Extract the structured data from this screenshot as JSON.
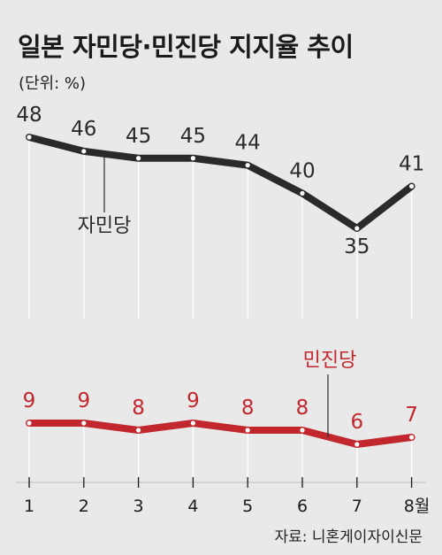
{
  "header": {
    "title": "일본 자민당·민진당 지지율 추이",
    "unit": "(단위: %)"
  },
  "footer": {
    "source": "자료: 니혼게이자이신문"
  },
  "colors": {
    "background": "#e9e9e9",
    "ldp": "#2a2a2a",
    "dp": "#c1272d"
  },
  "chart_data": {
    "type": "line",
    "categories": [
      "1",
      "2",
      "3",
      "4",
      "5",
      "6",
      "7",
      "8월"
    ],
    "series": [
      {
        "name": "자민당",
        "color": "#2a2a2a",
        "values": [
          48,
          46,
          45,
          45,
          44,
          40,
          35,
          41
        ]
      },
      {
        "name": "민진당",
        "color": "#c1272d",
        "values": [
          9,
          9,
          8,
          9,
          8,
          8,
          6,
          7
        ]
      }
    ],
    "grid": false,
    "legend": "labels on lines"
  }
}
